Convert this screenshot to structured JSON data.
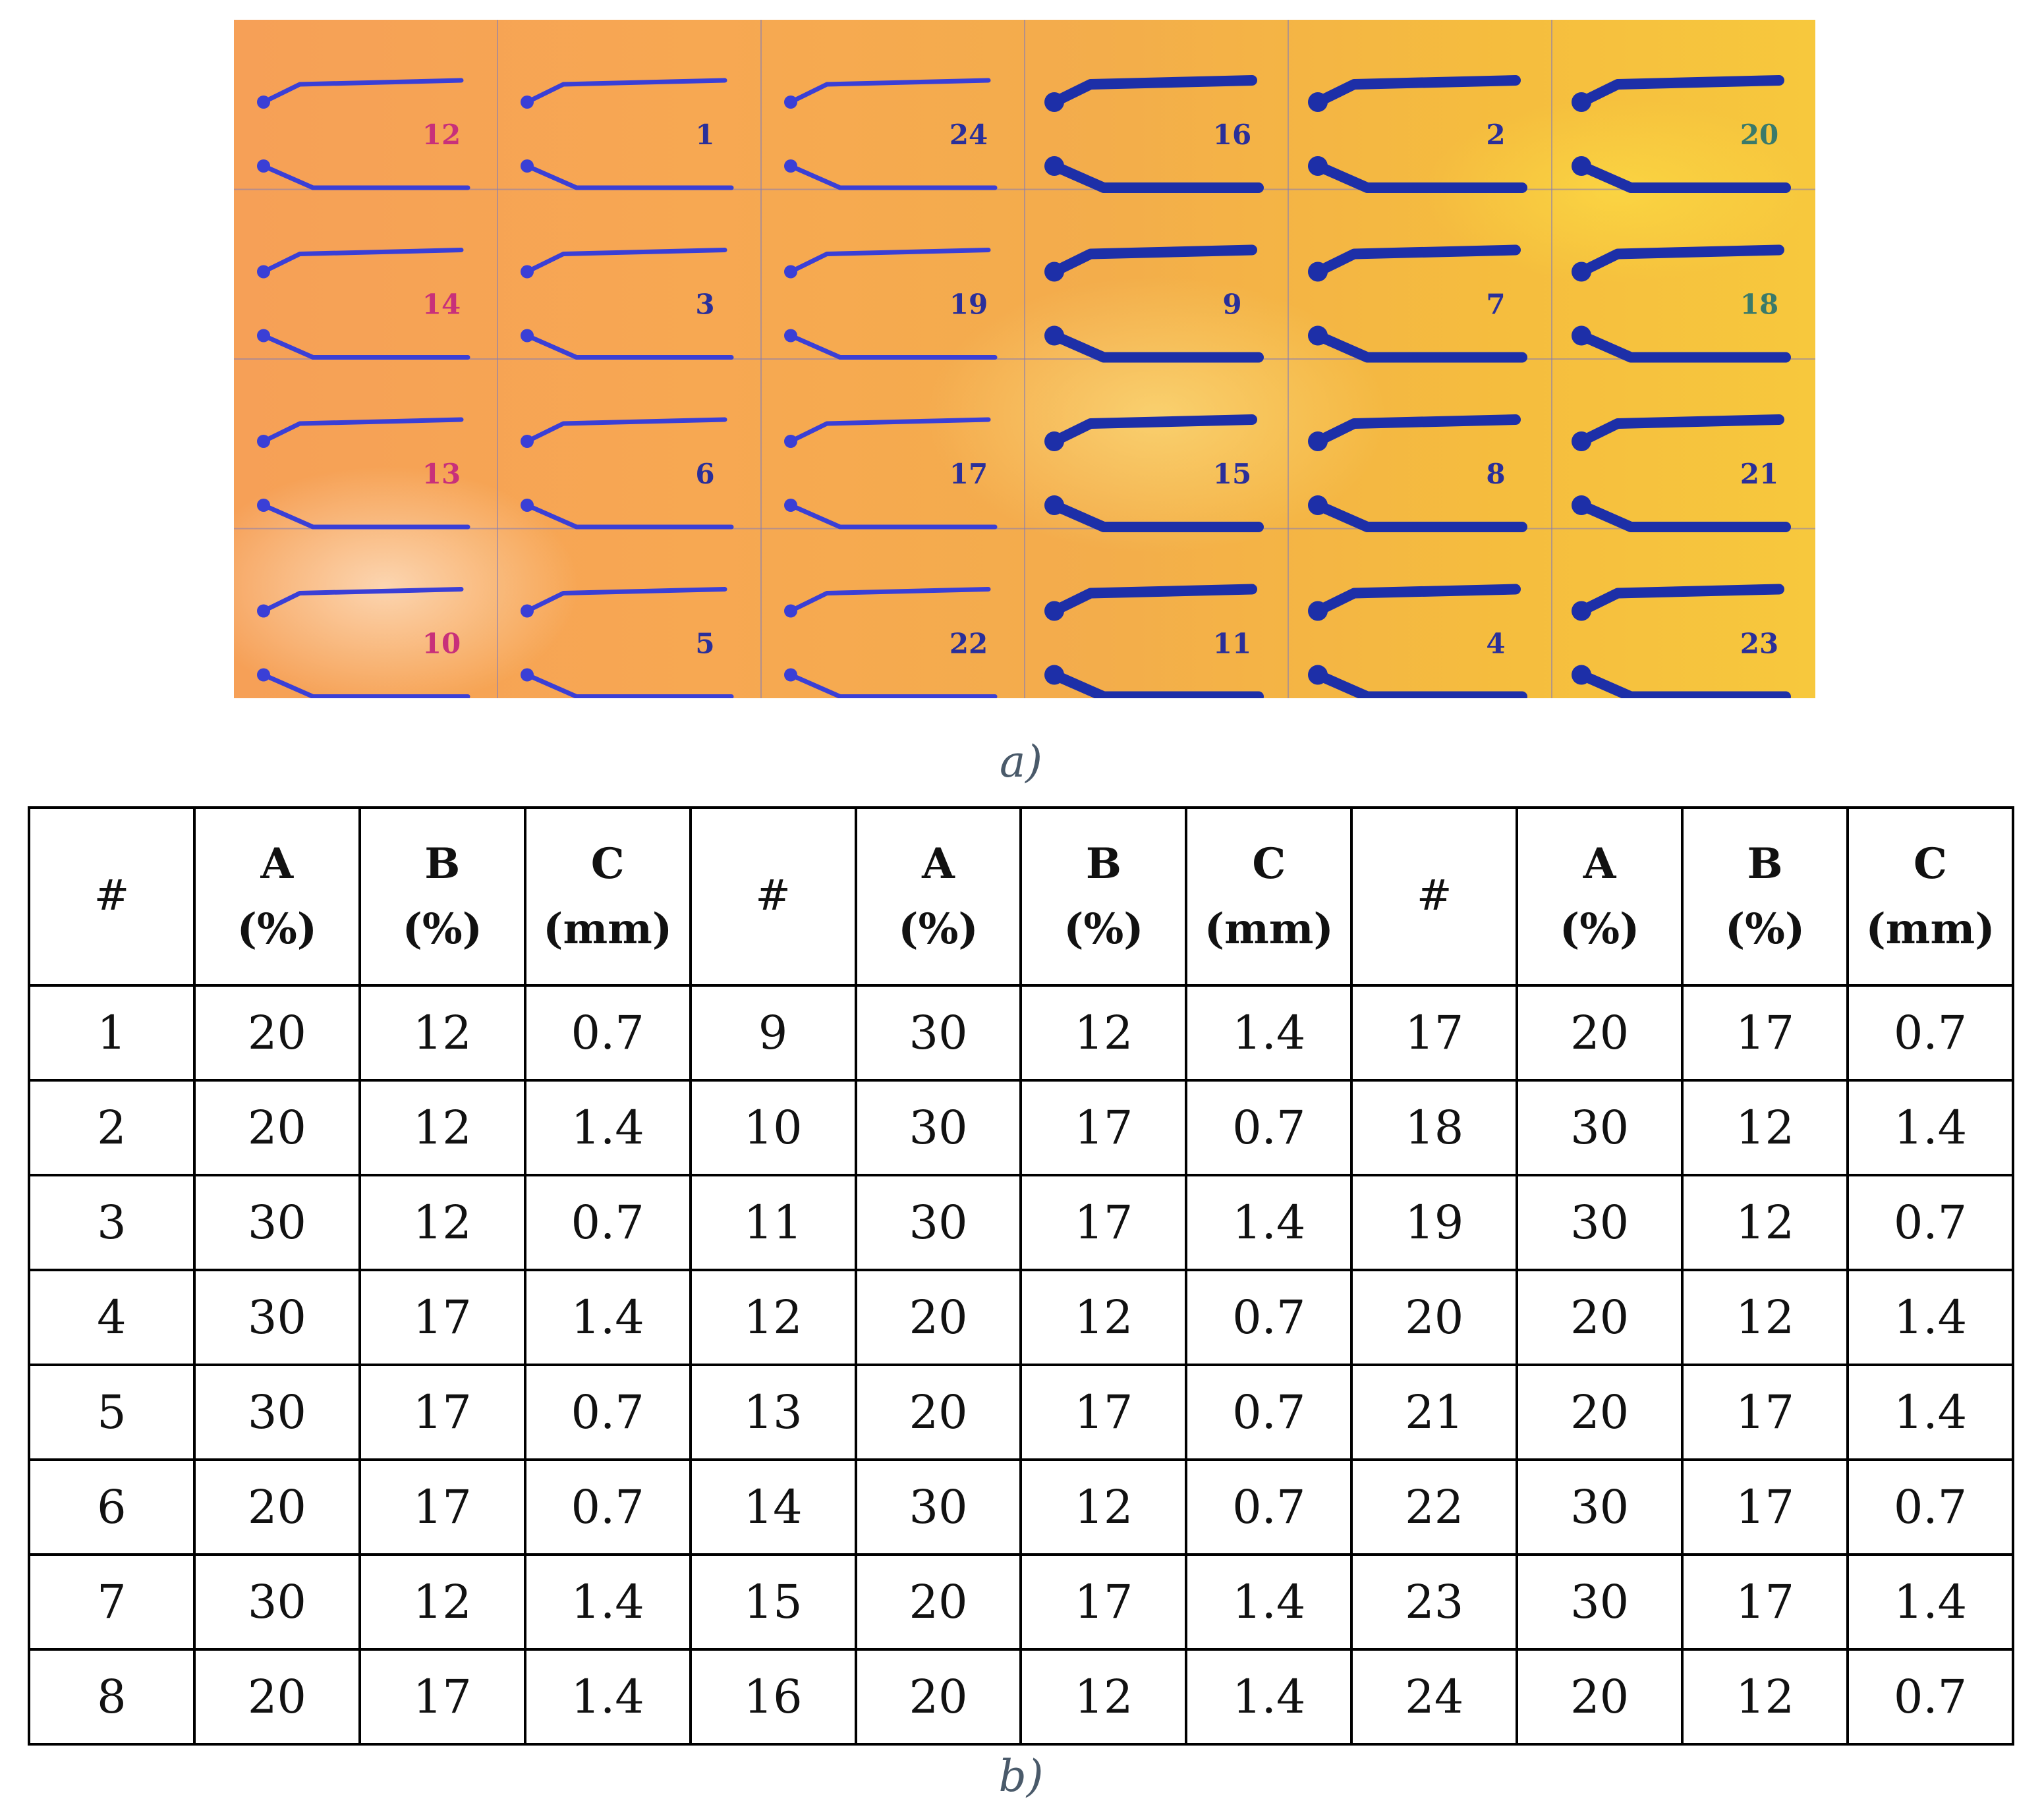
{
  "panel_a": {
    "caption": "a)",
    "grid": [
      [
        "12",
        "1",
        "24",
        "16",
        "2",
        "20"
      ],
      [
        "14",
        "3",
        "19",
        "9",
        "7",
        "18"
      ],
      [
        "13",
        "6",
        "17",
        "15",
        "8",
        "21"
      ],
      [
        "10",
        "5",
        "22",
        "11",
        "4",
        "23"
      ]
    ],
    "colors": {
      "electrode_thin": "#3a3fd6",
      "electrode_thick": "#1d2fa8",
      "label_pink": "#c8307a",
      "label_blue": "#2a2f9a",
      "label_green": "#3a7a6a"
    }
  },
  "panel_b": {
    "caption": "b)",
    "headers": [
      {
        "line1": "#",
        "line2": ""
      },
      {
        "line1": "A",
        "line2": "(%)"
      },
      {
        "line1": "B",
        "line2": "(%)"
      },
      {
        "line1": "C",
        "line2": "(mm)"
      },
      {
        "line1": "#",
        "line2": ""
      },
      {
        "line1": "A",
        "line2": "(%)"
      },
      {
        "line1": "B",
        "line2": "(%)"
      },
      {
        "line1": "C",
        "line2": "(mm)"
      },
      {
        "line1": "#",
        "line2": ""
      },
      {
        "line1": "A",
        "line2": "(%)"
      },
      {
        "line1": "B",
        "line2": "(%)"
      },
      {
        "line1": "C",
        "line2": "(mm)"
      }
    ],
    "rows": [
      [
        "1",
        "20",
        "12",
        "0.7",
        "9",
        "30",
        "12",
        "1.4",
        "17",
        "20",
        "17",
        "0.7"
      ],
      [
        "2",
        "20",
        "12",
        "1.4",
        "10",
        "30",
        "17",
        "0.7",
        "18",
        "30",
        "12",
        "1.4"
      ],
      [
        "3",
        "30",
        "12",
        "0.7",
        "11",
        "30",
        "17",
        "1.4",
        "19",
        "30",
        "12",
        "0.7"
      ],
      [
        "4",
        "30",
        "17",
        "1.4",
        "12",
        "20",
        "12",
        "0.7",
        "20",
        "20",
        "12",
        "1.4"
      ],
      [
        "5",
        "30",
        "17",
        "0.7",
        "13",
        "20",
        "17",
        "0.7",
        "21",
        "20",
        "17",
        "1.4"
      ],
      [
        "6",
        "20",
        "17",
        "0.7",
        "14",
        "30",
        "12",
        "0.7",
        "22",
        "30",
        "17",
        "0.7"
      ],
      [
        "7",
        "30",
        "12",
        "1.4",
        "15",
        "20",
        "17",
        "1.4",
        "23",
        "30",
        "17",
        "1.4"
      ],
      [
        "8",
        "20",
        "17",
        "1.4",
        "16",
        "20",
        "12",
        "1.4",
        "24",
        "20",
        "12",
        "0.7"
      ]
    ]
  }
}
